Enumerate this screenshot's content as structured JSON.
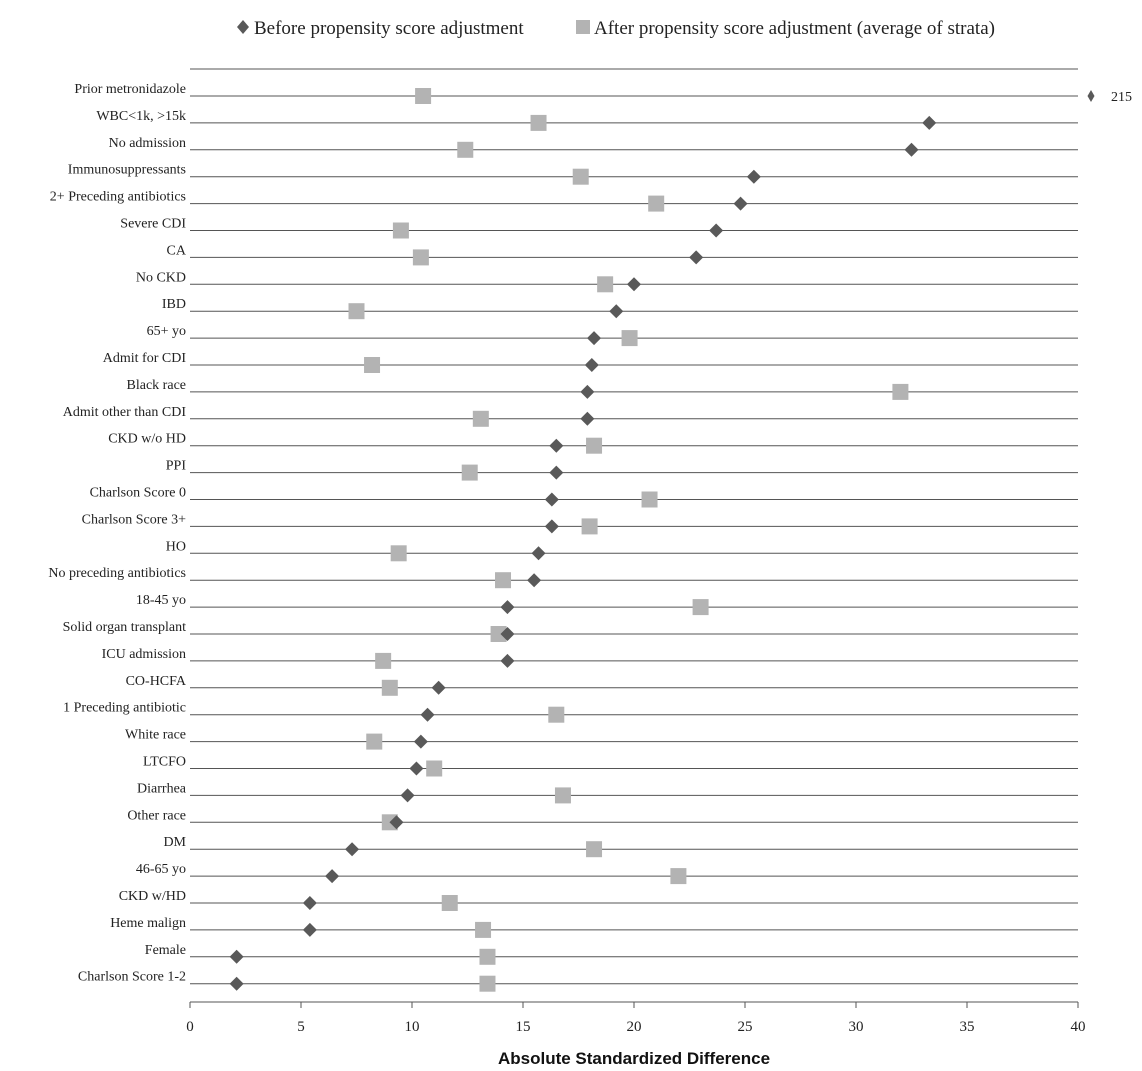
{
  "chart_data": {
    "type": "scatter",
    "xlabel": "Absolute Standardized Difference",
    "xlim": [
      0,
      40
    ],
    "xticks": [
      "0",
      "5",
      "10",
      "15",
      "20",
      "25",
      "30",
      "35",
      "40"
    ],
    "legend": {
      "position": "top",
      "before_label": "Before propensity score adjustment",
      "after_label": "After propensity score adjustment (average of strata)"
    },
    "colors": {
      "before": "#595959",
      "after": "#b3b3b3",
      "rule": "#555555"
    },
    "categories": [
      "Prior metronidazole",
      "WBC<1k, >15k",
      "No admission",
      "Immunosuppressants",
      "2+ Preceding antibiotics",
      "Severe CDI",
      "CA",
      "No CKD",
      "IBD",
      "65+ yo",
      "Admit for CDI",
      "Black race",
      "Admit other than CDI",
      "CKD w/o HD",
      "PPI",
      "Charlson Score 0",
      "Charlson Score 3+",
      "HO",
      "No preceding antibiotics",
      "18-45 yo",
      "Solid organ transplant",
      "ICU admission",
      "CO-HCFA",
      "1 Preceding antibiotic",
      "White race",
      "LTCFO",
      "Diarrhea",
      "Other race",
      "DM",
      "46-65 yo",
      "CKD w/HD",
      "Heme malign",
      "Female",
      "Charlson Score 1-2"
    ],
    "series": [
      {
        "name": "Before propensity score adjustment",
        "marker": "diamond",
        "values": [
          215,
          33.3,
          32.5,
          25.4,
          24.8,
          23.7,
          22.8,
          20.0,
          19.2,
          18.2,
          18.1,
          17.9,
          17.9,
          16.5,
          16.5,
          16.3,
          16.3,
          15.7,
          15.5,
          14.3,
          14.3,
          14.3,
          11.2,
          10.7,
          10.4,
          10.2,
          9.8,
          9.3,
          7.3,
          6.4,
          5.4,
          5.4,
          2.1,
          2.1
        ]
      },
      {
        "name": "After propensity score adjustment (average of strata)",
        "marker": "square",
        "values": [
          10.5,
          15.7,
          12.4,
          17.6,
          21.0,
          9.5,
          10.4,
          18.7,
          7.5,
          19.8,
          8.2,
          32.0,
          13.1,
          18.2,
          12.6,
          20.7,
          18.0,
          9.4,
          14.1,
          23.0,
          13.9,
          8.7,
          9.0,
          16.5,
          8.3,
          11.0,
          16.8,
          9.0,
          18.2,
          22.0,
          11.7,
          13.2,
          13.4,
          13.4
        ]
      }
    ],
    "annotations": [
      {
        "category": "Prior metronidazole",
        "text": "215"
      }
    ]
  }
}
